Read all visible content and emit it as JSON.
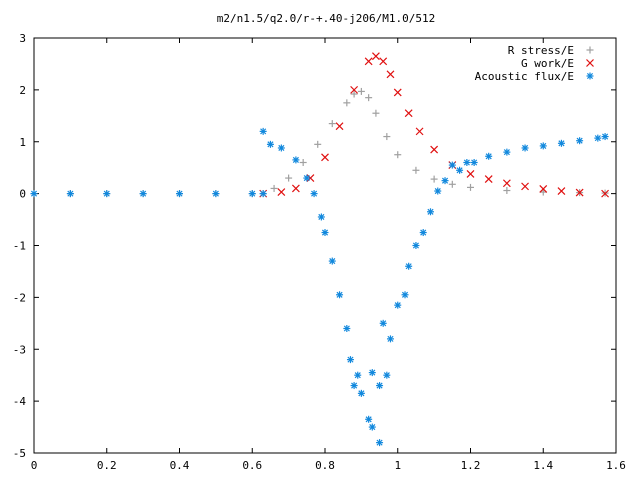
{
  "chart_data": {
    "type": "scatter",
    "title": "m2/n1.5/q2.0/r-+.40-j206/M1.0/512",
    "xlabel": "",
    "ylabel": "",
    "xlim": [
      0,
      1.6
    ],
    "ylim": [
      -5,
      3
    ],
    "x_ticks": [
      "0",
      "0.2",
      "0.4",
      "0.6",
      "0.8",
      "1",
      "1.2",
      "1.4",
      "1.6"
    ],
    "y_ticks": [
      "3",
      "2",
      "1",
      "0",
      "-1",
      "-2",
      "-3",
      "-4",
      "-5"
    ],
    "grid": false,
    "legend_position": "top-right",
    "series": [
      {
        "name": "R stress/E",
        "color": "#a0a0a0",
        "marker": "plus",
        "points": [
          [
            0.0,
            0.0
          ],
          [
            0.1,
            0.0
          ],
          [
            0.2,
            0.0
          ],
          [
            0.3,
            0.0
          ],
          [
            0.4,
            0.0
          ],
          [
            0.5,
            0.0
          ],
          [
            0.6,
            0.0
          ],
          [
            0.63,
            0.0
          ],
          [
            0.66,
            0.1
          ],
          [
            0.7,
            0.3
          ],
          [
            0.74,
            0.6
          ],
          [
            0.78,
            0.95
          ],
          [
            0.82,
            1.35
          ],
          [
            0.86,
            1.75
          ],
          [
            0.88,
            1.92
          ],
          [
            0.9,
            1.97
          ],
          [
            0.92,
            1.85
          ],
          [
            0.94,
            1.55
          ],
          [
            0.97,
            1.1
          ],
          [
            1.0,
            0.75
          ],
          [
            1.05,
            0.45
          ],
          [
            1.1,
            0.28
          ],
          [
            1.15,
            0.18
          ],
          [
            1.2,
            0.12
          ],
          [
            1.3,
            0.06
          ],
          [
            1.4,
            0.03
          ],
          [
            1.5,
            0.02
          ],
          [
            1.57,
            0.01
          ]
        ]
      },
      {
        "name": "G work/E",
        "color": "#e01010",
        "marker": "cross",
        "points": [
          [
            0.63,
            0.0
          ],
          [
            0.68,
            0.03
          ],
          [
            0.72,
            0.1
          ],
          [
            0.76,
            0.3
          ],
          [
            0.8,
            0.7
          ],
          [
            0.84,
            1.3
          ],
          [
            0.88,
            2.0
          ],
          [
            0.92,
            2.55
          ],
          [
            0.94,
            2.65
          ],
          [
            0.96,
            2.55
          ],
          [
            0.98,
            2.3
          ],
          [
            1.0,
            1.95
          ],
          [
            1.03,
            1.55
          ],
          [
            1.06,
            1.2
          ],
          [
            1.1,
            0.85
          ],
          [
            1.15,
            0.55
          ],
          [
            1.2,
            0.38
          ],
          [
            1.25,
            0.28
          ],
          [
            1.3,
            0.2
          ],
          [
            1.35,
            0.14
          ],
          [
            1.4,
            0.09
          ],
          [
            1.45,
            0.05
          ],
          [
            1.5,
            0.02
          ],
          [
            1.57,
            0.0
          ]
        ]
      },
      {
        "name": "Acoustic flux/E",
        "color": "#1188dd",
        "marker": "star",
        "points": [
          [
            0.0,
            0.0
          ],
          [
            0.1,
            0.0
          ],
          [
            0.2,
            0.0
          ],
          [
            0.3,
            0.0
          ],
          [
            0.4,
            0.0
          ],
          [
            0.5,
            0.0
          ],
          [
            0.6,
            0.0
          ],
          [
            0.63,
            0.0
          ],
          [
            0.63,
            1.2
          ],
          [
            0.65,
            0.95
          ],
          [
            0.68,
            0.88
          ],
          [
            0.72,
            0.65
          ],
          [
            0.75,
            0.3
          ],
          [
            0.77,
            0.0
          ],
          [
            0.79,
            -0.45
          ],
          [
            0.8,
            -0.75
          ],
          [
            0.82,
            -1.3
          ],
          [
            0.84,
            -1.95
          ],
          [
            0.86,
            -2.6
          ],
          [
            0.87,
            -3.2
          ],
          [
            0.88,
            -3.7
          ],
          [
            0.89,
            -3.5
          ],
          [
            0.9,
            -3.85
          ],
          [
            0.92,
            -4.35
          ],
          [
            0.93,
            -4.5
          ],
          [
            0.95,
            -4.8
          ],
          [
            0.93,
            -3.45
          ],
          [
            0.95,
            -3.7
          ],
          [
            0.97,
            -3.5
          ],
          [
            0.96,
            -2.5
          ],
          [
            0.98,
            -2.8
          ],
          [
            1.0,
            -2.15
          ],
          [
            1.02,
            -1.95
          ],
          [
            1.03,
            -1.4
          ],
          [
            1.05,
            -1.0
          ],
          [
            1.07,
            -0.75
          ],
          [
            1.09,
            -0.35
          ],
          [
            1.11,
            0.05
          ],
          [
            1.13,
            0.25
          ],
          [
            1.15,
            0.55
          ],
          [
            1.17,
            0.45
          ],
          [
            1.19,
            0.6
          ],
          [
            1.21,
            0.6
          ],
          [
            1.25,
            0.72
          ],
          [
            1.3,
            0.8
          ],
          [
            1.35,
            0.88
          ],
          [
            1.4,
            0.92
          ],
          [
            1.45,
            0.97
          ],
          [
            1.5,
            1.02
          ],
          [
            1.55,
            1.07
          ],
          [
            1.57,
            1.1
          ]
        ]
      }
    ]
  }
}
